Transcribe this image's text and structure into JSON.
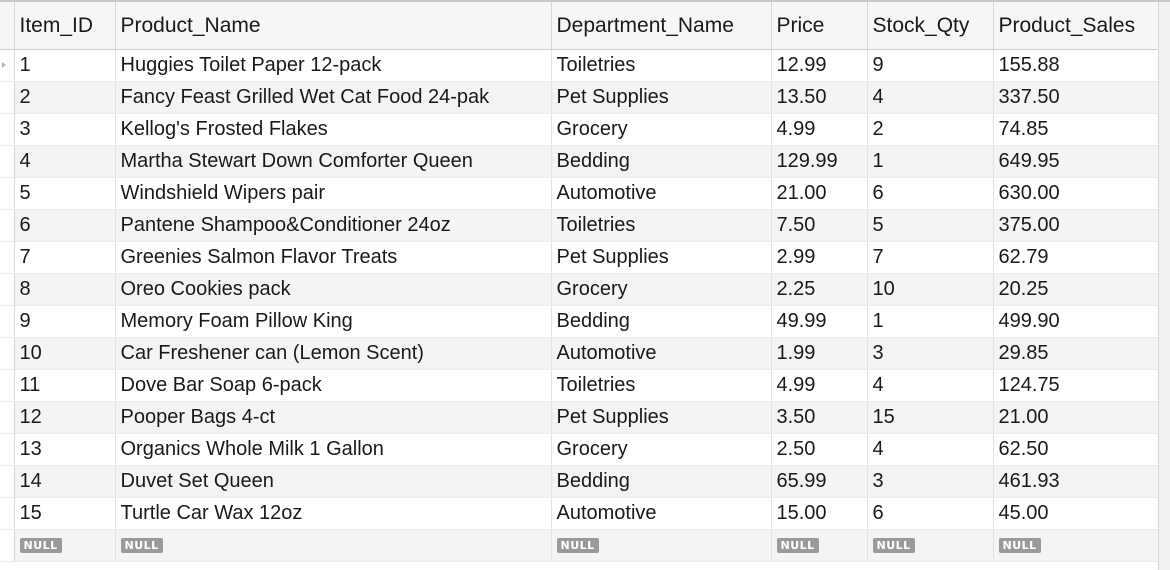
{
  "grid": {
    "columns": [
      "Item_ID",
      "Product_Name",
      "Department_Name",
      "Price",
      "Stock_Qty",
      "Product_Sales"
    ],
    "null_label": "NULL",
    "rows": [
      [
        "1",
        "Huggies Toilet Paper 12-pack",
        "Toiletries",
        "12.99",
        "9",
        "155.88"
      ],
      [
        "2",
        "Fancy Feast Grilled Wet Cat Food 24-pak",
        "Pet Supplies",
        "13.50",
        "4",
        "337.50"
      ],
      [
        "3",
        "Kellog's Frosted Flakes",
        "Grocery",
        "4.99",
        "2",
        "74.85"
      ],
      [
        "4",
        "Martha Stewart Down Comforter Queen",
        "Bedding",
        "129.99",
        "1",
        "649.95"
      ],
      [
        "5",
        "Windshield Wipers pair",
        "Automotive",
        "21.00",
        "6",
        "630.00"
      ],
      [
        "6",
        "Pantene Shampoo&Conditioner 24oz",
        "Toiletries",
        "7.50",
        "5",
        "375.00"
      ],
      [
        "7",
        "Greenies Salmon Flavor Treats",
        "Pet Supplies",
        "2.99",
        "7",
        "62.79"
      ],
      [
        "8",
        "Oreo Cookies pack",
        "Grocery",
        "2.25",
        "10",
        "20.25"
      ],
      [
        "9",
        "Memory Foam Pillow King",
        "Bedding",
        "49.99",
        "1",
        "499.90"
      ],
      [
        "10",
        "Car Freshener can (Lemon Scent)",
        "Automotive",
        "1.99",
        "3",
        "29.85"
      ],
      [
        "11",
        "Dove Bar Soap 6-pack",
        "Toiletries",
        "4.99",
        "4",
        "124.75"
      ],
      [
        "12",
        "Pooper Bags 4-ct",
        "Pet Supplies",
        "3.50",
        "15",
        "21.00"
      ],
      [
        "13",
        "Organics Whole Milk 1 Gallon",
        "Grocery",
        "2.50",
        "4",
        "62.50"
      ],
      [
        "14",
        "Duvet Set Queen",
        "Bedding",
        "65.99",
        "3",
        "461.93"
      ],
      [
        "15",
        "Turtle Car Wax 12oz",
        "Automotive",
        "15.00",
        "6",
        "45.00"
      ]
    ]
  }
}
